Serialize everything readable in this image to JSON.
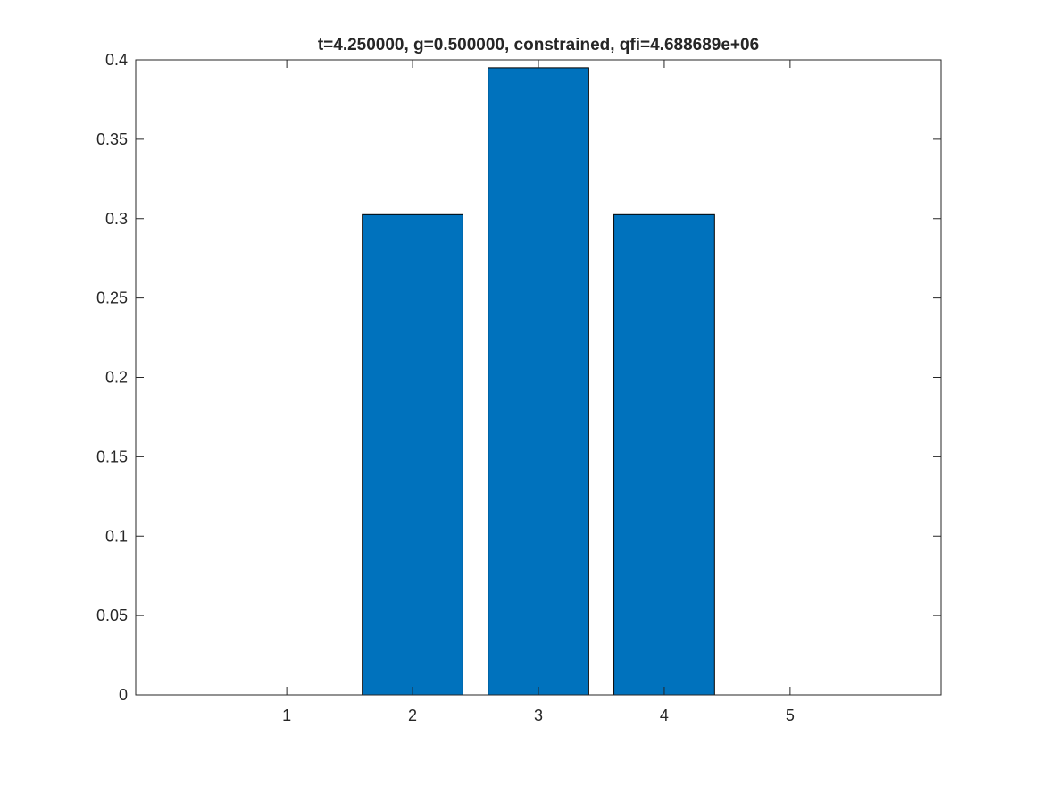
{
  "chart_data": {
    "type": "bar",
    "title": "t=4.250000, g=0.500000, constrained, qfi=4.688689e+06",
    "xlabel": "",
    "ylabel": "",
    "categories": [
      1,
      2,
      3,
      4,
      5
    ],
    "values": [
      0,
      0.3025,
      0.395,
      0.3025,
      0
    ],
    "xlim": [
      -0.2,
      6.2
    ],
    "ylim": [
      0,
      0.4
    ],
    "xticks": [
      "1",
      "2",
      "3",
      "4",
      "5"
    ],
    "yticks": [
      "0",
      "0.05",
      "0.1",
      "0.15",
      "0.2",
      "0.25",
      "0.3",
      "0.35",
      "0.4"
    ],
    "ytick_values": [
      0,
      0.05,
      0.1,
      0.15,
      0.2,
      0.25,
      0.3,
      0.35,
      0.4
    ],
    "grid": false,
    "legend": "none",
    "bar_color": "#0072BD",
    "bar_edge_color": "#000000"
  }
}
